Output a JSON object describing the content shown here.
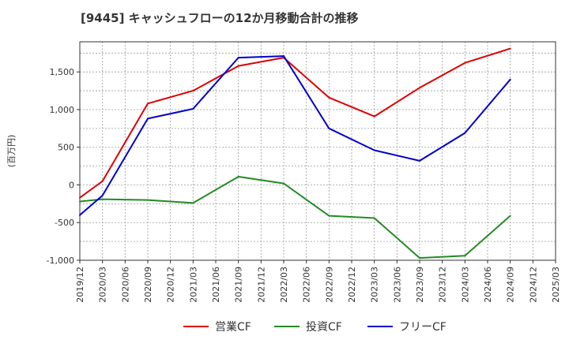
{
  "chart_data": {
    "type": "line",
    "title": "[9445]  キャッシュフローの12か月移動合計の推移",
    "ylabel": "(百万円)",
    "xlabel": "",
    "ylim": [
      -1000,
      1900
    ],
    "yticks": [
      -1000,
      -500,
      0,
      500,
      1000,
      1500
    ],
    "ytick_labels": [
      "-1,000",
      "-500",
      "0",
      "500",
      "1,000",
      "1,500"
    ],
    "categories": [
      "2019/12",
      "2020/03",
      "2020/06",
      "2020/09",
      "2020/12",
      "2021/03",
      "2021/06",
      "2021/09",
      "2021/12",
      "2022/03",
      "2022/06",
      "2022/09",
      "2022/12",
      "2023/03",
      "2023/06",
      "2023/09",
      "2023/12",
      "2024/03",
      "2024/06",
      "2024/09",
      "2024/12",
      "2025/03"
    ],
    "series": [
      {
        "name": "営業CF",
        "color": "#dd0000",
        "values": [
          -170,
          50,
          null,
          1080,
          null,
          1250,
          null,
          1580,
          null,
          1690,
          null,
          1160,
          null,
          910,
          null,
          1290,
          null,
          1620,
          null,
          1810,
          null,
          null
        ]
      },
      {
        "name": "投資CF",
        "color": "#228B22",
        "values": [
          -220,
          -190,
          null,
          -200,
          null,
          -240,
          null,
          110,
          null,
          20,
          null,
          -410,
          null,
          -440,
          null,
          -970,
          null,
          -940,
          null,
          -410,
          null,
          null
        ]
      },
      {
        "name": "フリーCF",
        "color": "#0000cc",
        "values": [
          -400,
          -140,
          null,
          880,
          null,
          1010,
          null,
          1690,
          null,
          1710,
          null,
          750,
          null,
          460,
          null,
          320,
          null,
          690,
          null,
          1400,
          null,
          null
        ]
      }
    ],
    "grid": true,
    "legend_position": "bottom"
  }
}
